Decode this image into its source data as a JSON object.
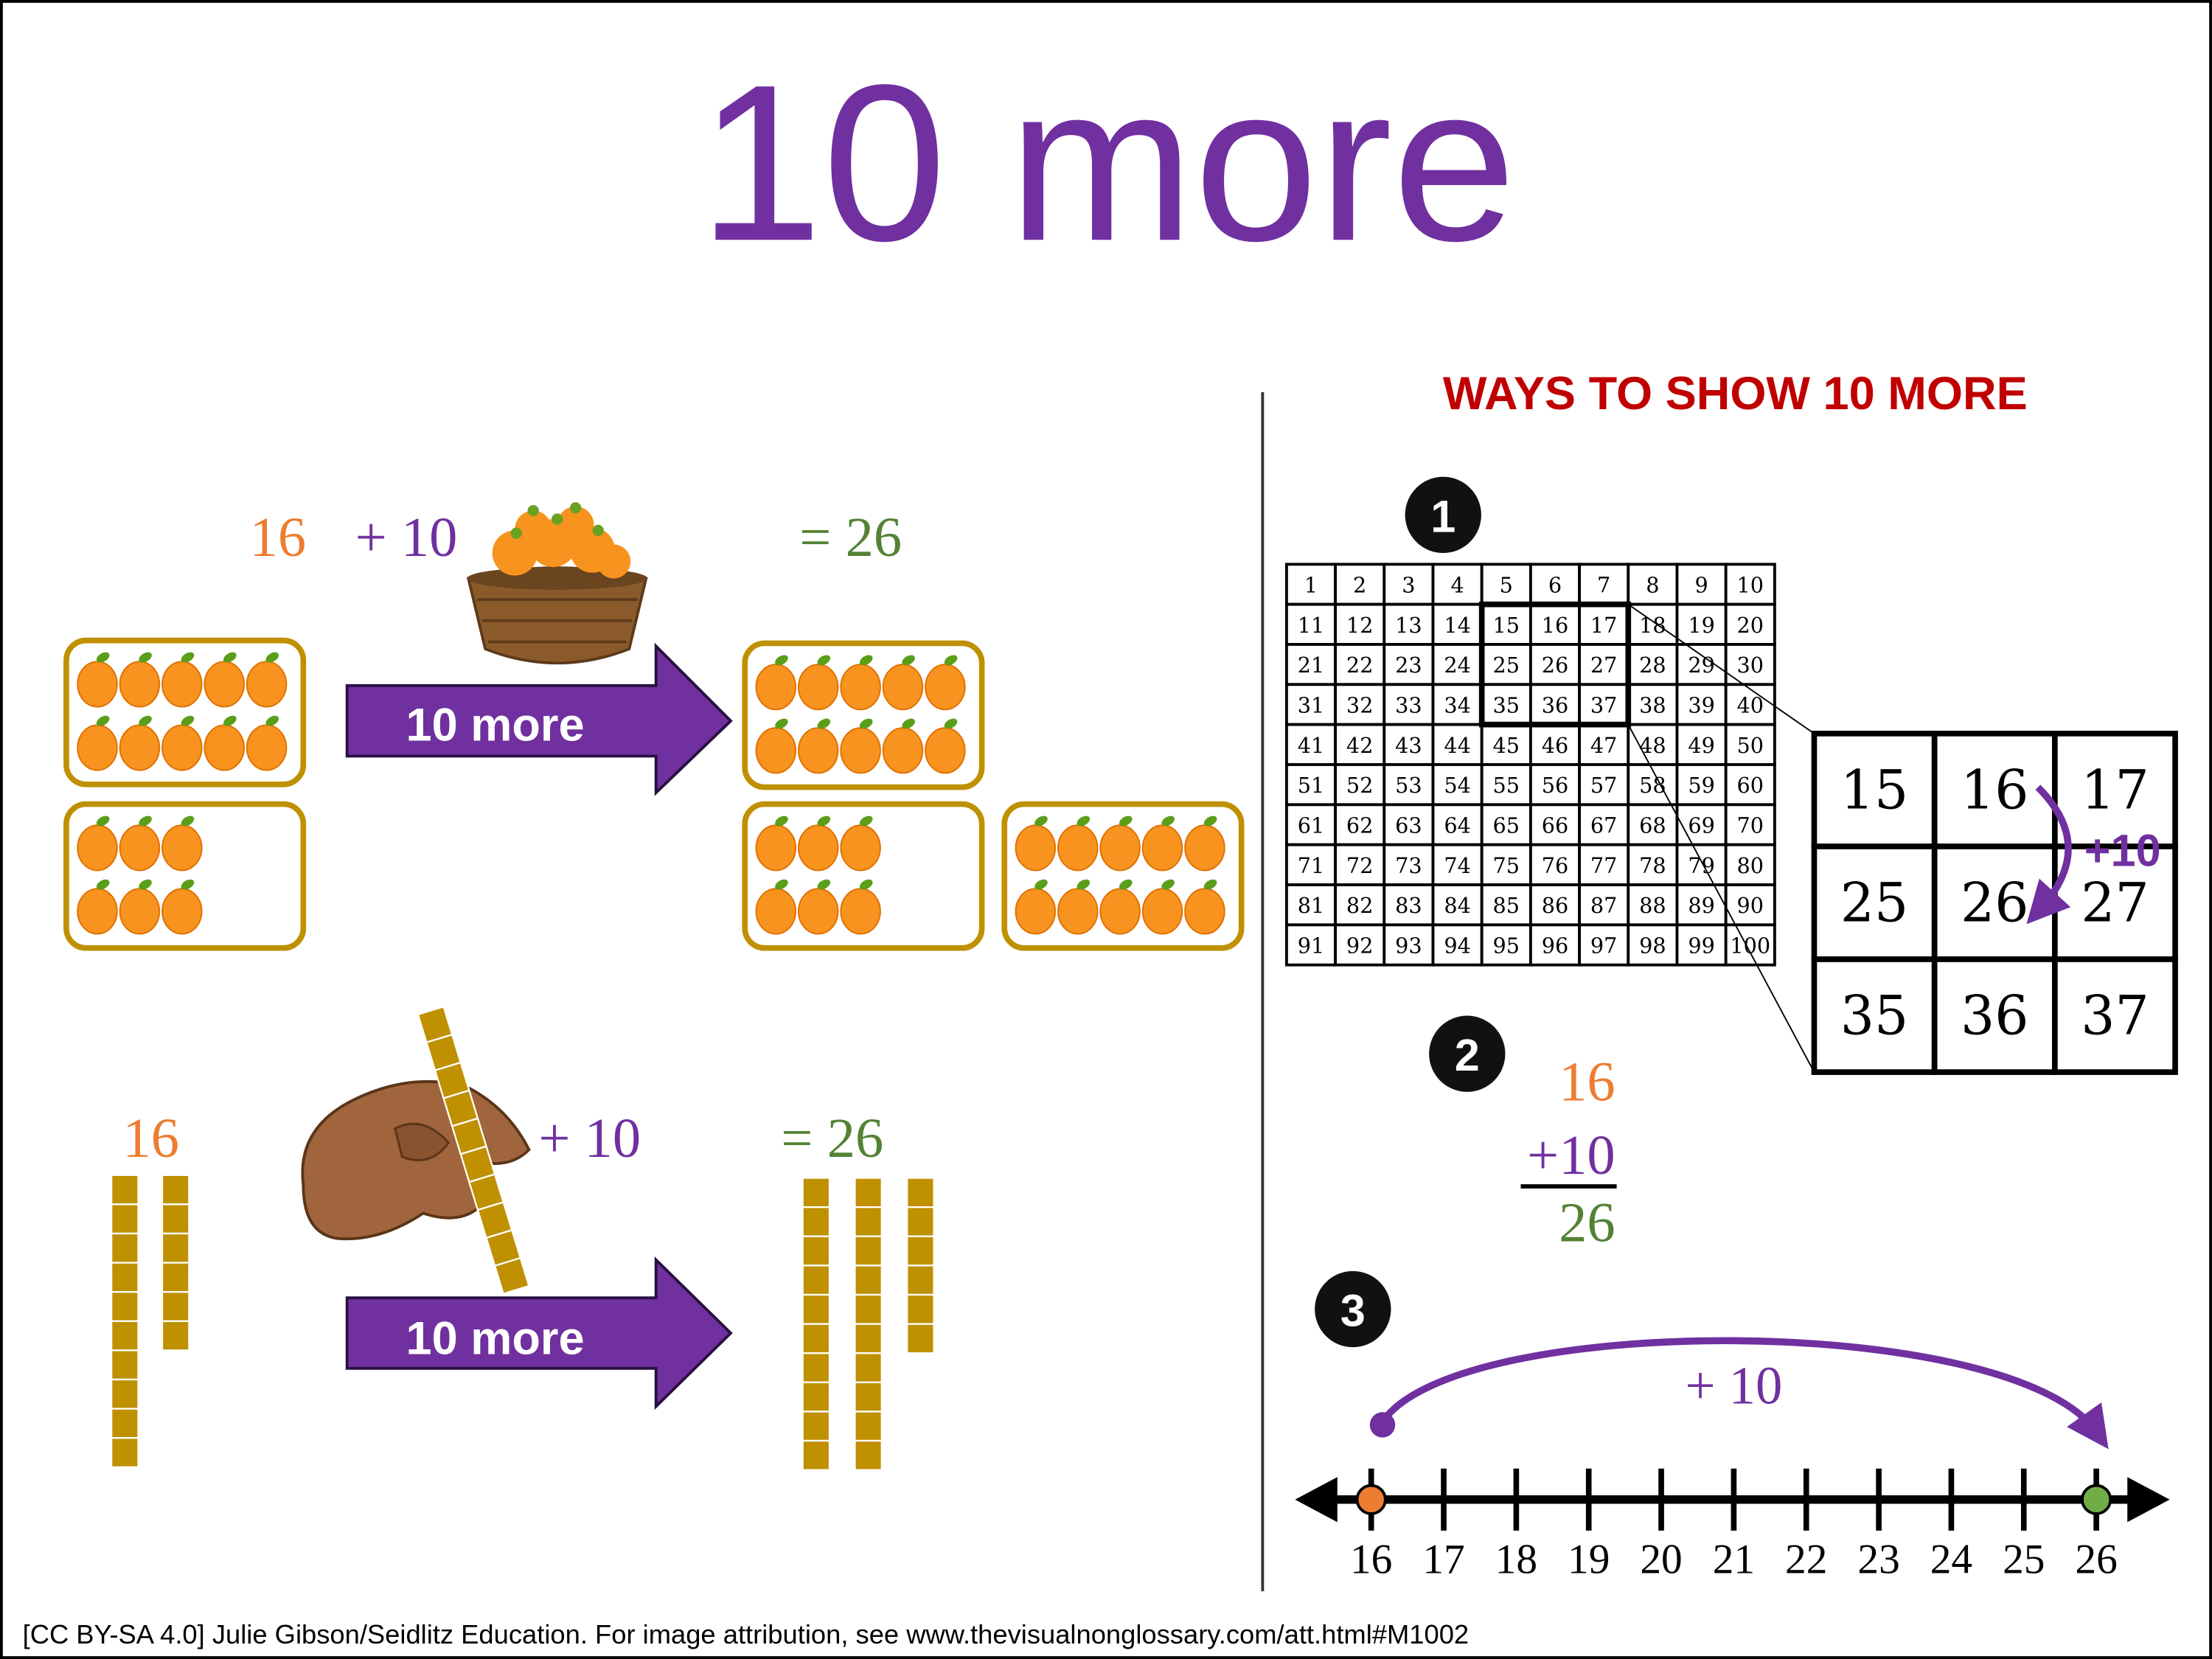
{
  "title": "10 more",
  "ways_heading": "WAYS TO SHOW 10 MORE",
  "colors": {
    "purple": "#7030a0",
    "orange": "#ed7d31",
    "green": "#548235",
    "red": "#c00000",
    "gold": "#bf9000",
    "fruit": "#f7931e"
  },
  "oranges_example": {
    "start": "16",
    "add": "+ 10",
    "result": "= 26",
    "arrow_label": "10 more",
    "icons": [
      "orange-basket-icon",
      "orange-icon"
    ]
  },
  "blocks_example": {
    "start": "16",
    "add": "+ 10",
    "result": "= 26",
    "arrow_label": "10 more",
    "icons": [
      "hand-holding-ten-rod-icon",
      "base-ten-rod-icon"
    ]
  },
  "way1": {
    "badge": "1",
    "hundred_chart": [
      "1",
      "2",
      "3",
      "4",
      "5",
      "6",
      "7",
      "8",
      "9",
      "10",
      "11",
      "12",
      "13",
      "14",
      "15",
      "16",
      "17",
      "18",
      "19",
      "20",
      "21",
      "22",
      "23",
      "24",
      "25",
      "26",
      "27",
      "28",
      "29",
      "30",
      "31",
      "32",
      "33",
      "34",
      "35",
      "36",
      "37",
      "38",
      "39",
      "40",
      "41",
      "42",
      "43",
      "44",
      "45",
      "46",
      "47",
      "48",
      "49",
      "50",
      "51",
      "52",
      "53",
      "54",
      "55",
      "56",
      "57",
      "58",
      "59",
      "60",
      "61",
      "62",
      "63",
      "64",
      "65",
      "66",
      "67",
      "68",
      "69",
      "70",
      "71",
      "72",
      "73",
      "74",
      "75",
      "76",
      "77",
      "78",
      "79",
      "80",
      "81",
      "82",
      "83",
      "84",
      "85",
      "86",
      "87",
      "88",
      "89",
      "90",
      "91",
      "92",
      "93",
      "94",
      "95",
      "96",
      "97",
      "98",
      "99",
      "100"
    ],
    "zoom_cells": [
      "15",
      "16",
      "17",
      "25",
      "26",
      "27",
      "35",
      "36",
      "37"
    ],
    "jump_label": "+10"
  },
  "way2": {
    "badge": "2",
    "addend1": "16",
    "addend2": "+10",
    "sum": "26"
  },
  "way3": {
    "badge": "3",
    "jump_label": "+ 10",
    "ticks": [
      "16",
      "17",
      "18",
      "19",
      "20",
      "21",
      "22",
      "23",
      "24",
      "25",
      "26"
    ],
    "start": 16,
    "end": 26
  },
  "footer": "[CC BY-SA 4.0] Julie Gibson/Seidlitz Education.  For image attribution, see www.thevisualnonglossary.com/att.html#M1002"
}
